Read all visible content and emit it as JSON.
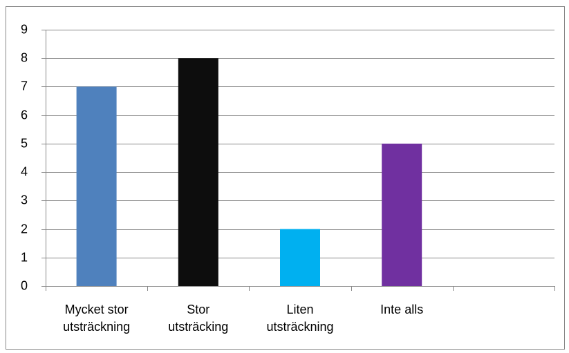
{
  "chart_data": {
    "type": "bar",
    "categories": [
      "Mycket stor\nutsträckning",
      "Stor\nutsträcking",
      "Liten\nutsträckning",
      "Inte alls",
      null
    ],
    "values": [
      7,
      8,
      2,
      5,
      null
    ],
    "colors": [
      "#4f81bd",
      "#0d0d0d",
      "#00b0f0",
      "#7030a0",
      null
    ],
    "ylim": [
      0,
      9
    ],
    "yticks": [
      0,
      1,
      2,
      3,
      4,
      5,
      6,
      7,
      8,
      9
    ],
    "grid": true
  }
}
